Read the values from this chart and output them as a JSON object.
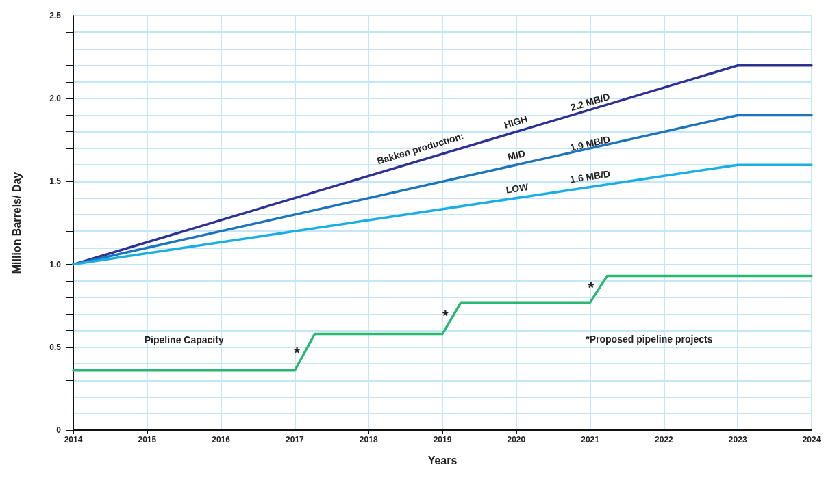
{
  "chart_data": {
    "type": "line",
    "xlabel": "Years",
    "ylabel": "Million Barrels/ Day",
    "xlim": [
      2014,
      2024
    ],
    "xticks": [
      2014,
      2015,
      2016,
      2017,
      2018,
      2019,
      2020,
      2021,
      2022,
      2023,
      2024
    ],
    "ylim": [
      0,
      2.5
    ],
    "yticks": [
      0,
      {
        "value": 0.1,
        "label": null
      },
      {
        "value": 0.2,
        "label": null
      },
      {
        "value": 0.3,
        "label": null
      },
      {
        "value": 0.4,
        "label": null
      },
      0.5,
      {
        "value": 0.6,
        "label": null
      },
      {
        "value": 0.7,
        "label": null
      },
      {
        "value": 0.8,
        "label": null
      },
      {
        "value": 0.9,
        "label": null
      },
      {
        "value": 1,
        "label": "1.0"
      },
      {
        "value": 1.1,
        "label": null
      },
      {
        "value": 1.2,
        "label": null
      },
      {
        "value": 1.3,
        "label": null
      },
      {
        "value": 1.4,
        "label": null
      },
      1.5,
      {
        "value": 1.6,
        "label": null
      },
      {
        "value": 1.7,
        "label": null
      },
      {
        "value": 1.8,
        "label": null
      },
      {
        "value": 1.9,
        "label": null
      },
      {
        "value": 2,
        "label": "2.0"
      },
      {
        "value": 2.1,
        "label": null
      },
      {
        "value": 2.2,
        "label": null
      },
      {
        "value": 2.3,
        "label": null
      },
      {
        "value": 2.4,
        "label": null
      },
      2.5
    ],
    "grid": true,
    "marker": "none",
    "line_style": "solid",
    "series": [
      {
        "name": "HIGH",
        "color": "#2e3192",
        "x": [
          2014,
          2023,
          2024
        ],
        "values": [
          1.0,
          2.2,
          2.2
        ]
      },
      {
        "name": "MID",
        "color": "#1c75bc",
        "x": [
          2014,
          2023,
          2024
        ],
        "values": [
          1.0,
          1.9,
          1.9
        ]
      },
      {
        "name": "LOW",
        "color": "#1aaee5",
        "x": [
          2014,
          2023,
          2024
        ],
        "values": [
          1.0,
          1.6,
          1.6
        ]
      },
      {
        "name": "Pipeline Capacity",
        "color": "#2bb673",
        "x": [
          2014,
          2017,
          2017.27,
          2019,
          2019.25,
          2021,
          2021.23,
          2024
        ],
        "values": [
          0.36,
          0.36,
          0.58,
          0.58,
          0.77,
          0.77,
          0.93,
          0.93
        ]
      }
    ],
    "annotations": [
      "Bakken production:",
      "2.2 MB/D",
      "1.9 MB/D",
      "1.6 MB/D",
      "*",
      "*",
      "*",
      "*Proposed pipeline projects"
    ]
  }
}
